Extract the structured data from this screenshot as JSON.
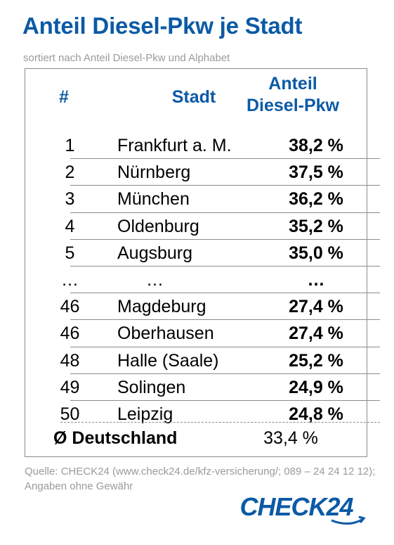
{
  "title": "Anteil Diesel-Pkw je Stadt",
  "subtitle": "sortiert nach Anteil Diesel-Pkw und Alphabet",
  "chart_data": {
    "type": "table",
    "columns": [
      "#",
      "Stadt",
      "Anteil Diesel-Pkw"
    ],
    "header": {
      "rank": "#",
      "city": "Stadt",
      "share_line1": "Anteil",
      "share_line2": "Diesel-Pkw"
    },
    "rows": [
      {
        "rank": "1",
        "city": "Frankfurt a. M.",
        "share": "38,2 %"
      },
      {
        "rank": "2",
        "city": "Nürnberg",
        "share": "37,5 %"
      },
      {
        "rank": "3",
        "city": "München",
        "share": "36,2 %"
      },
      {
        "rank": "4",
        "city": "Oldenburg",
        "share": "35,2 %"
      },
      {
        "rank": "5",
        "city": "Augsburg",
        "share": "35,0 %"
      },
      {
        "rank": "…",
        "city": "…",
        "share": "…"
      },
      {
        "rank": "46",
        "city": "Magdeburg",
        "share": "27,4 %"
      },
      {
        "rank": "46",
        "city": "Oberhausen",
        "share": "27,4 %"
      },
      {
        "rank": "48",
        "city": "Halle (Saale)",
        "share": "25,2 %"
      },
      {
        "rank": "49",
        "city": "Solingen",
        "share": "24,9 %"
      },
      {
        "rank": "50",
        "city": "Leipzig",
        "share": "24,8 %"
      }
    ],
    "average": {
      "label": "Ø Deutschland",
      "share": "33,4 %"
    }
  },
  "source": "Quelle: CHECK24 (www.check24.de/kfz-versicherung/; 089 – 24 24 12 12); Angaben ohne Gewähr",
  "logo": {
    "text": "CHECK24",
    "color": "#0b5aa6"
  },
  "colors": {
    "accent": "#0b5aa6",
    "muted": "#9a9a9a"
  }
}
